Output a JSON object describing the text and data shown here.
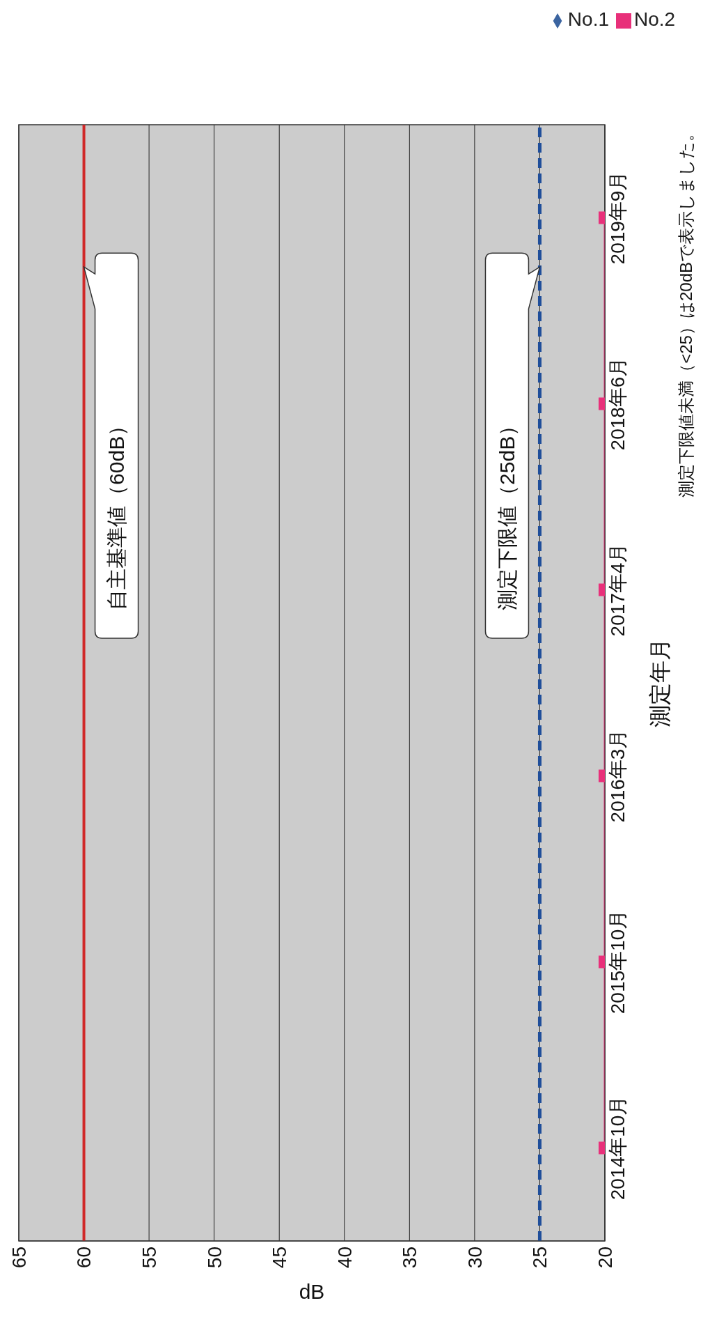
{
  "chart_data": {
    "type": "line",
    "orientation": "horizontal",
    "categories": [
      "2019年9月",
      "2018年6月",
      "2017年4月",
      "2016年3月",
      "2015年10月",
      "2014年10月"
    ],
    "series": [
      {
        "name": "No.1",
        "color": "#3b64a0",
        "marker": "diamond",
        "line_style": "solid",
        "values": [
          null,
          null,
          null,
          null,
          null,
          null
        ]
      },
      {
        "name": "No.2",
        "color": "#e8307a",
        "marker": "square",
        "line_style": "solid",
        "values": [
          20,
          20,
          20,
          20,
          20,
          20
        ]
      }
    ],
    "xlim": [
      65,
      20
    ],
    "xticks": [
      65,
      60,
      55,
      50,
      45,
      40,
      35,
      30,
      25,
      20
    ],
    "xlabel": "dB",
    "ylabel": "測定年月",
    "grid": "x",
    "legend": "top right",
    "ref_lines": [
      {
        "axis": "x",
        "value": 60,
        "label": "自主基準値（60dB）",
        "color": "#d02828",
        "line_style": "solid"
      },
      {
        "axis": "x",
        "value": 25,
        "label": "測定下限値（25dB）",
        "color": "#1f4e9a",
        "line_style": "dashed"
      }
    ],
    "annotations": [
      "測定下限値未満（<25）は20dBで表示しました。"
    ]
  }
}
